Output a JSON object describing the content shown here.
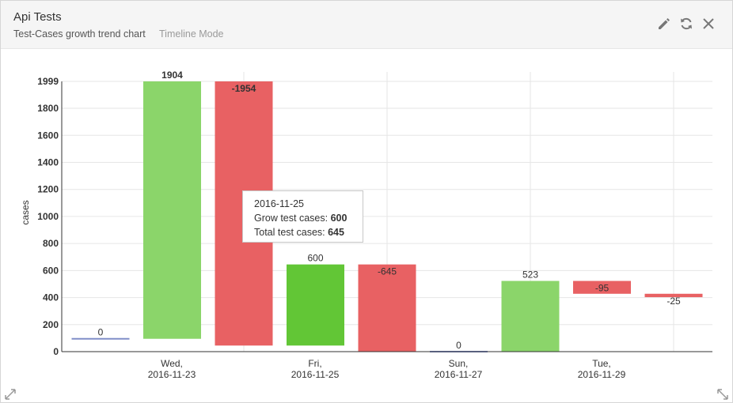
{
  "header": {
    "title": "Api Tests",
    "subtitle": "Test-Cases growth trend chart",
    "mode": "Timeline Mode",
    "icons": [
      "pencil-icon",
      "refresh-icon",
      "close-icon"
    ]
  },
  "tooltip": {
    "date": "2016-11-25",
    "grow_label": "Grow test cases: ",
    "grow_value": "600",
    "total_label": "Total test cases: ",
    "total_value": "645"
  },
  "colors": {
    "increase": "#8bd56a",
    "increase_highlight": "#62c636",
    "decrease": "#e86163",
    "baseline": "#7f8ec8"
  },
  "chart_data": {
    "type": "bar",
    "subtype": "waterfall",
    "ylabel": "cases",
    "ylim": [
      0,
      1999
    ],
    "yticks": [
      0,
      200,
      400,
      600,
      800,
      1000,
      1200,
      1400,
      1600,
      1800,
      1999
    ],
    "xtick_labels": [
      {
        "index": 1,
        "line1": "Wed,",
        "line2": "2016-11-23"
      },
      {
        "index": 3,
        "line1": "Fri,",
        "line2": "2016-11-25"
      },
      {
        "index": 5,
        "line1": "Sun,",
        "line2": "2016-11-27"
      },
      {
        "index": 7,
        "line1": "Tue,",
        "line2": "2016-11-29"
      }
    ],
    "bars": [
      {
        "start": 95,
        "end": 95,
        "label": "0",
        "kind": "baseline"
      },
      {
        "start": 95,
        "end": 1999,
        "label": "1904",
        "kind": "increase"
      },
      {
        "start": 1999,
        "end": 45,
        "label": "-1954",
        "kind": "decrease"
      },
      {
        "start": 45,
        "end": 645,
        "label": "600",
        "kind": "increase_highlight"
      },
      {
        "start": 645,
        "end": 0,
        "label": "-645",
        "kind": "decrease"
      },
      {
        "start": 0,
        "end": 0,
        "label": "0",
        "kind": "baseline"
      },
      {
        "start": 0,
        "end": 523,
        "label": "523",
        "kind": "increase"
      },
      {
        "start": 523,
        "end": 428,
        "label": "-95",
        "kind": "decrease"
      },
      {
        "start": 428,
        "end": 403,
        "label": "-25",
        "kind": "decrease"
      }
    ],
    "grid": true,
    "legend": "none"
  }
}
